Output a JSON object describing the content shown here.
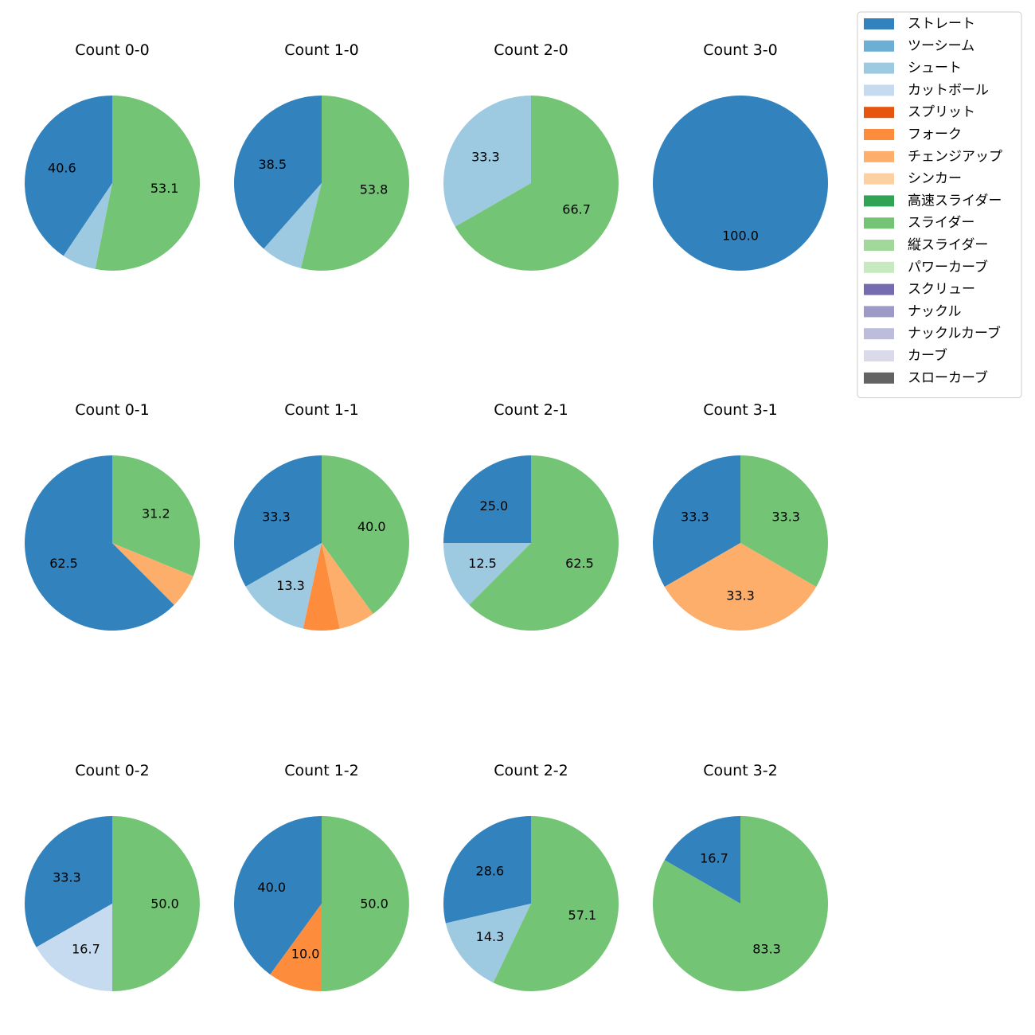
{
  "chart_data": {
    "type": "pie",
    "legend": {
      "placement": "top-right",
      "entries": [
        {
          "name": "ストレート",
          "color": "#3182bd"
        },
        {
          "name": "ツーシーム",
          "color": "#6baed6"
        },
        {
          "name": "シュート",
          "color": "#9ecae1"
        },
        {
          "name": "カットボール",
          "color": "#c6dbef"
        },
        {
          "name": "スプリット",
          "color": "#e6550d"
        },
        {
          "name": "フォーク",
          "color": "#fd8d3c"
        },
        {
          "name": "チェンジアップ",
          "color": "#fdae6b"
        },
        {
          "name": "シンカー",
          "color": "#fdd0a2"
        },
        {
          "name": "高速スライダー",
          "color": "#31a354"
        },
        {
          "name": "スライダー",
          "color": "#74c476"
        },
        {
          "name": "縦スライダー",
          "color": "#a1d99b"
        },
        {
          "name": "パワーカーブ",
          "color": "#c7e9c0"
        },
        {
          "name": "スクリュー",
          "color": "#756bb1"
        },
        {
          "name": "ナックル",
          "color": "#9e9ac8"
        },
        {
          "name": "ナックルカーブ",
          "color": "#bcbddc"
        },
        {
          "name": "カーブ",
          "color": "#dadaeb"
        },
        {
          "name": "スローカーブ",
          "color": "#636363"
        }
      ]
    },
    "charts": [
      {
        "title": "Count 0-0",
        "slices": [
          {
            "pitch": "ストレート",
            "value": 40.6,
            "label": "40.6"
          },
          {
            "pitch": "シュート",
            "value": 6.3,
            "label": ""
          },
          {
            "pitch": "スライダー",
            "value": 53.1,
            "label": "53.1"
          }
        ]
      },
      {
        "title": "Count 1-0",
        "slices": [
          {
            "pitch": "ストレート",
            "value": 38.5,
            "label": "38.5"
          },
          {
            "pitch": "シュート",
            "value": 7.7,
            "label": ""
          },
          {
            "pitch": "スライダー",
            "value": 53.8,
            "label": "53.8"
          }
        ]
      },
      {
        "title": "Count 2-0",
        "slices": [
          {
            "pitch": "シュート",
            "value": 33.3,
            "label": "33.3"
          },
          {
            "pitch": "スライダー",
            "value": 66.7,
            "label": "66.7"
          }
        ]
      },
      {
        "title": "Count 3-0",
        "slices": [
          {
            "pitch": "ストレート",
            "value": 100.0,
            "label": "100.0"
          }
        ]
      },
      {
        "title": "Count 0-1",
        "slices": [
          {
            "pitch": "ストレート",
            "value": 62.5,
            "label": "62.5"
          },
          {
            "pitch": "チェンジアップ",
            "value": 6.3,
            "label": ""
          },
          {
            "pitch": "スライダー",
            "value": 31.2,
            "label": "31.2"
          }
        ]
      },
      {
        "title": "Count 1-1",
        "slices": [
          {
            "pitch": "ストレート",
            "value": 33.3,
            "label": "33.3"
          },
          {
            "pitch": "シュート",
            "value": 13.3,
            "label": "13.3"
          },
          {
            "pitch": "フォーク",
            "value": 6.7,
            "label": ""
          },
          {
            "pitch": "チェンジアップ",
            "value": 6.7,
            "label": ""
          },
          {
            "pitch": "スライダー",
            "value": 40.0,
            "label": "40.0"
          }
        ]
      },
      {
        "title": "Count 2-1",
        "slices": [
          {
            "pitch": "ストレート",
            "value": 25.0,
            "label": "25.0"
          },
          {
            "pitch": "シュート",
            "value": 12.5,
            "label": "12.5"
          },
          {
            "pitch": "スライダー",
            "value": 62.5,
            "label": "62.5"
          }
        ]
      },
      {
        "title": "Count 3-1",
        "slices": [
          {
            "pitch": "ストレート",
            "value": 33.3,
            "label": "33.3"
          },
          {
            "pitch": "チェンジアップ",
            "value": 33.3,
            "label": "33.3"
          },
          {
            "pitch": "スライダー",
            "value": 33.3,
            "label": "33.3"
          }
        ]
      },
      {
        "title": "Count 0-2",
        "slices": [
          {
            "pitch": "ストレート",
            "value": 33.3,
            "label": "33.3"
          },
          {
            "pitch": "カットボール",
            "value": 16.7,
            "label": "16.7"
          },
          {
            "pitch": "スライダー",
            "value": 50.0,
            "label": "50.0"
          }
        ]
      },
      {
        "title": "Count 1-2",
        "slices": [
          {
            "pitch": "ストレート",
            "value": 40.0,
            "label": "40.0"
          },
          {
            "pitch": "フォーク",
            "value": 10.0,
            "label": "10.0"
          },
          {
            "pitch": "スライダー",
            "value": 50.0,
            "label": "50.0"
          }
        ]
      },
      {
        "title": "Count 2-2",
        "slices": [
          {
            "pitch": "ストレート",
            "value": 28.6,
            "label": "28.6"
          },
          {
            "pitch": "シュート",
            "value": 14.3,
            "label": "14.3"
          },
          {
            "pitch": "スライダー",
            "value": 57.1,
            "label": "57.1"
          }
        ]
      },
      {
        "title": "Count 3-2",
        "slices": [
          {
            "pitch": "ストレート",
            "value": 16.7,
            "label": "16.7"
          },
          {
            "pitch": "スライダー",
            "value": 83.3,
            "label": "83.3"
          }
        ]
      }
    ]
  }
}
